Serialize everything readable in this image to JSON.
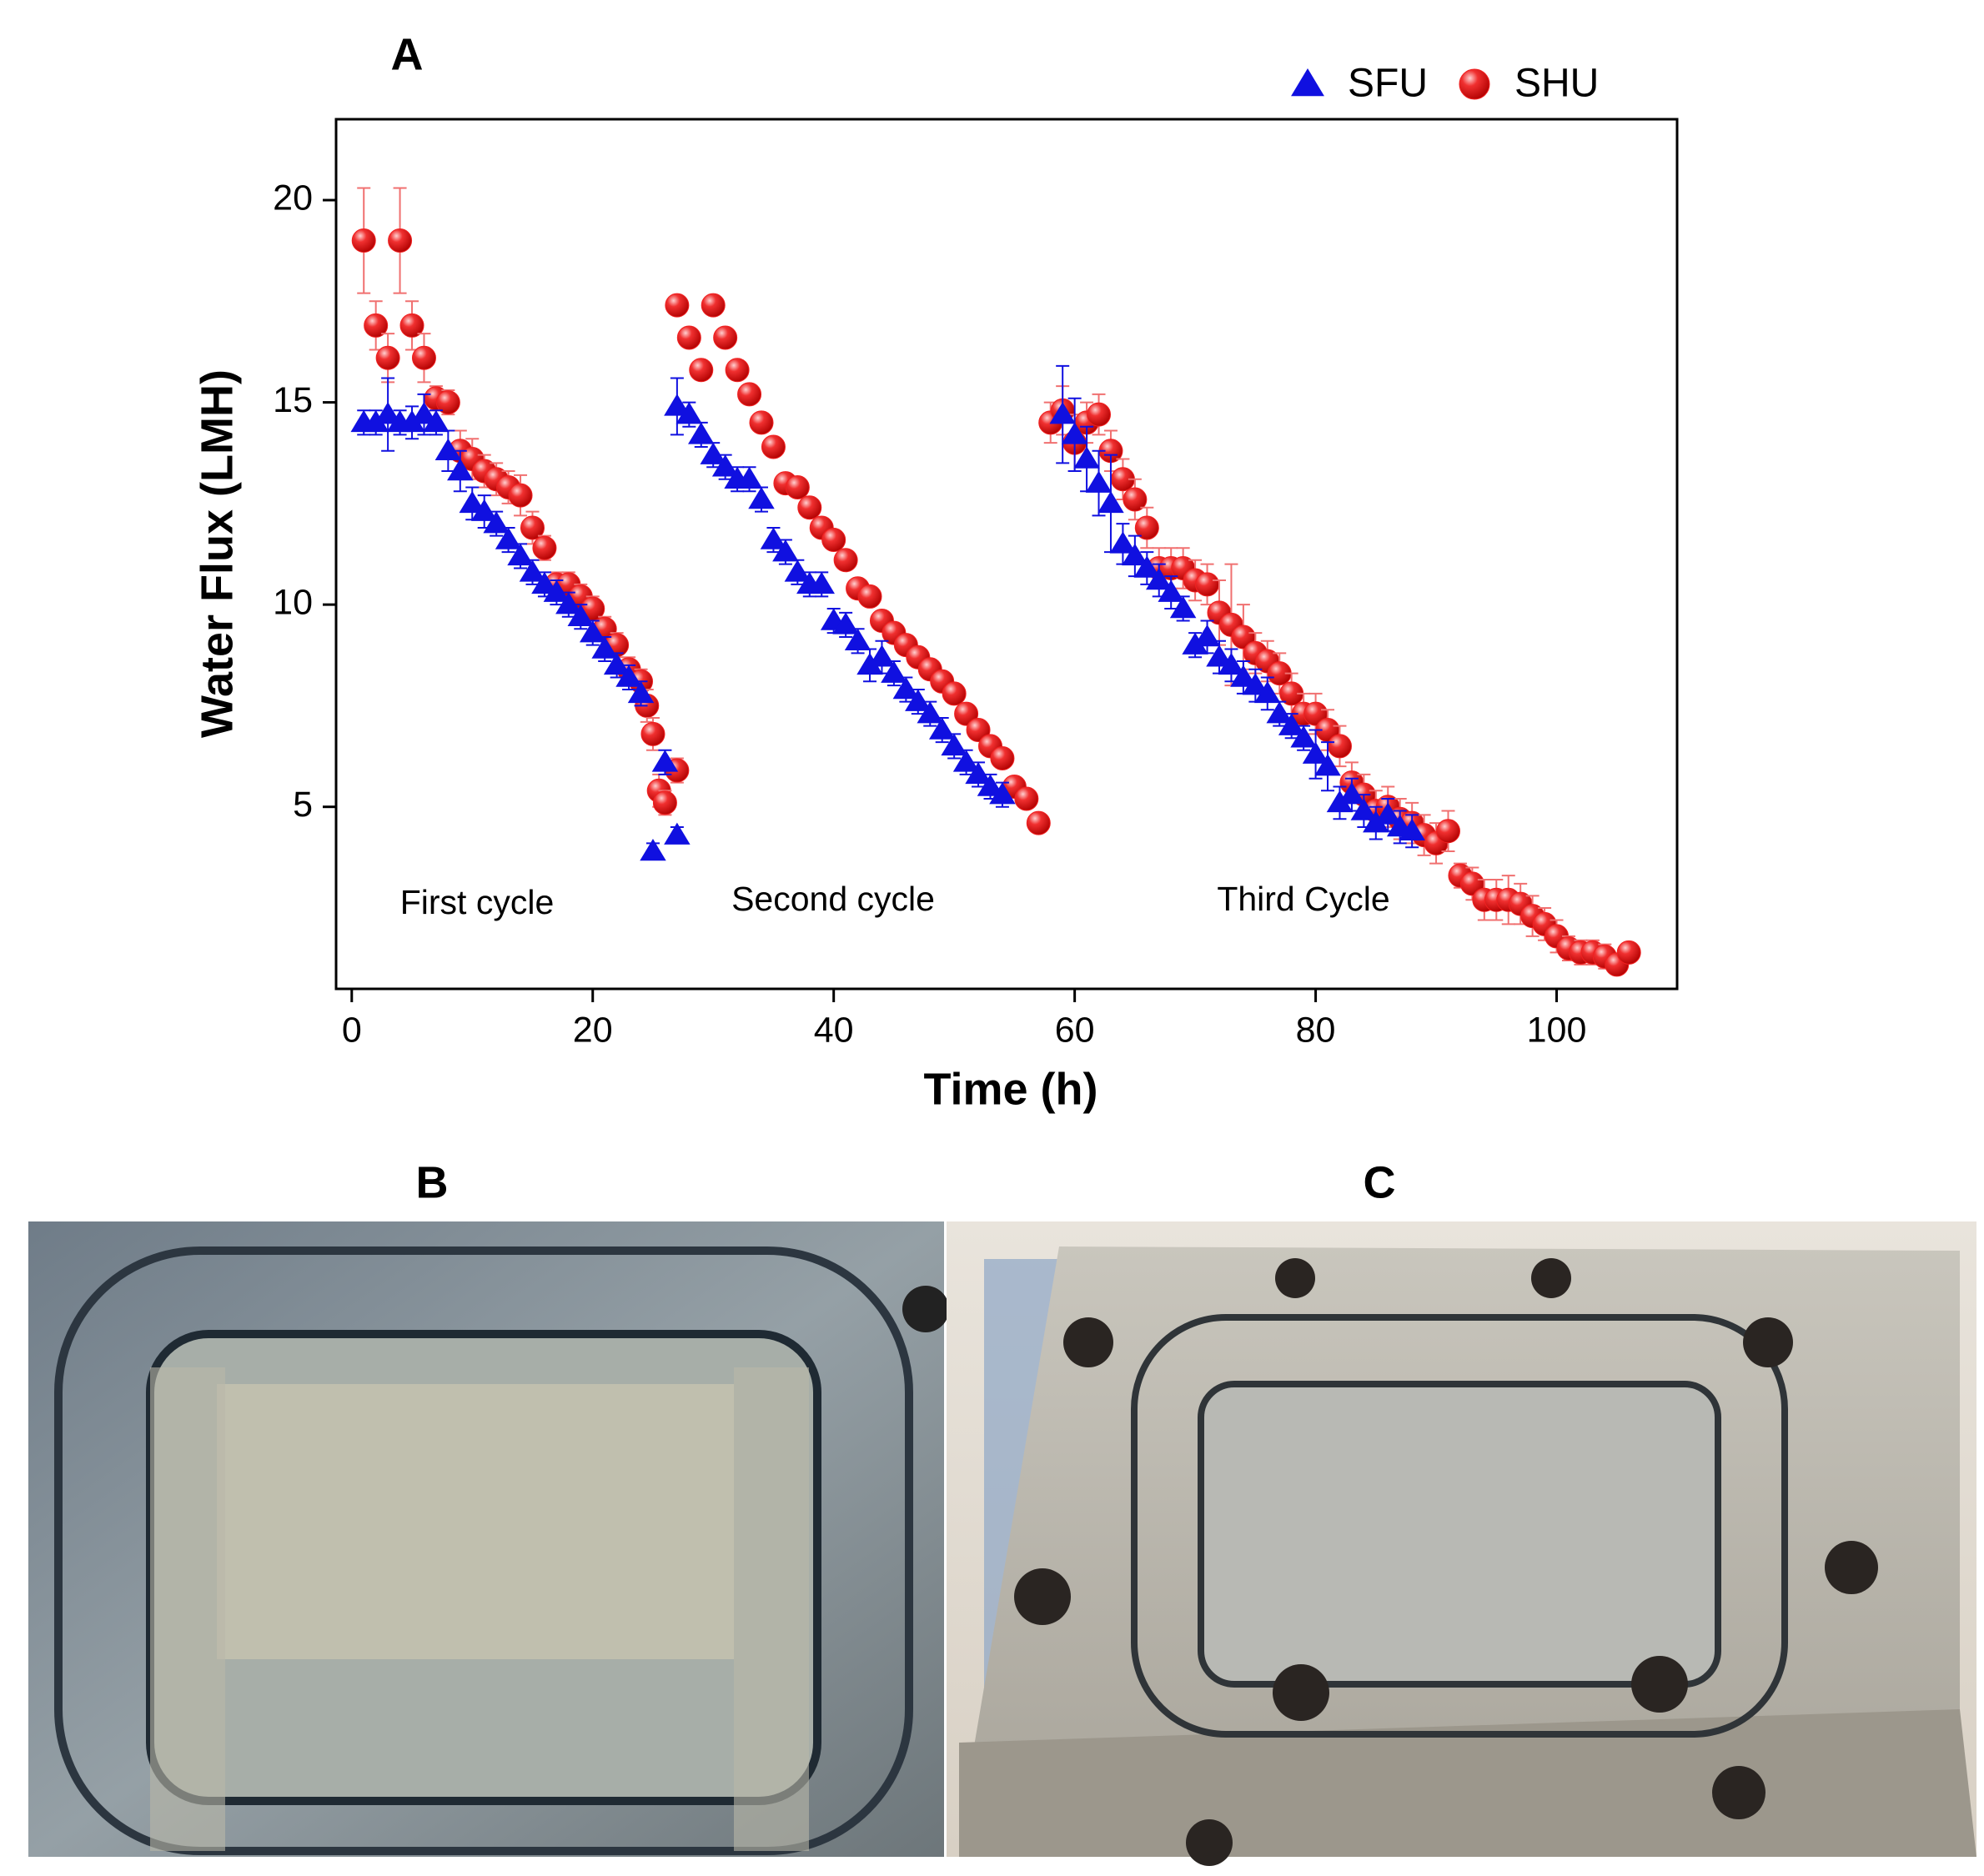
{
  "chart_data": {
    "type": "scatter",
    "panel_label": "A",
    "x_label": "Time (h)",
    "y_label": "Water Flux (LMH)",
    "xlim": [
      -1.3,
      110
    ],
    "ylim": [
      0.5,
      22
    ],
    "xticks": [
      0,
      20,
      40,
      60,
      80,
      100
    ],
    "yticks": [
      5,
      10,
      15,
      20
    ],
    "grid": false,
    "legend": "top-right",
    "annotations": [
      "First cycle",
      "Second cycle",
      "Third Cycle"
    ],
    "series": [
      {
        "name": "SFU",
        "color": "#1010e0",
        "marker": "triangle",
        "x": [
          1,
          2,
          3,
          4,
          5,
          6,
          7,
          8,
          9,
          10,
          11,
          12,
          13,
          14,
          15,
          16,
          17,
          18,
          19,
          20,
          21,
          22,
          23,
          24,
          25,
          26,
          27,
          27,
          28,
          29,
          30,
          31,
          32,
          33,
          34,
          35,
          36,
          37,
          38,
          39,
          40,
          41,
          42,
          43,
          44,
          45,
          46,
          47,
          48,
          49,
          50,
          51,
          52,
          53,
          54,
          59,
          60,
          61,
          62,
          63,
          64,
          65,
          66,
          67,
          68,
          69,
          70,
          71,
          72,
          73,
          74,
          75,
          76,
          77,
          78,
          79,
          80,
          81,
          82,
          83,
          84,
          85,
          86,
          87,
          88
        ],
        "values": [
          14.5,
          14.5,
          14.7,
          14.5,
          14.5,
          14.7,
          14.5,
          13.8,
          13.3,
          12.5,
          12.3,
          12,
          11.6,
          11.2,
          10.8,
          10.5,
          10.3,
          10,
          9.7,
          9.3,
          8.9,
          8.5,
          8.2,
          7.8,
          3.9,
          6.1,
          4.3,
          14.9,
          14.7,
          14.2,
          13.7,
          13.4,
          13.1,
          13.1,
          12.6,
          11.6,
          11.3,
          10.8,
          10.5,
          10.5,
          9.6,
          9.5,
          9.1,
          8.5,
          8.7,
          8.3,
          7.9,
          7.6,
          7.3,
          6.9,
          6.5,
          6.1,
          5.8,
          5.5,
          5.3,
          14.7,
          14.2,
          13.6,
          13,
          12.5,
          11.5,
          11.2,
          10.9,
          10.6,
          10.3,
          9.9,
          9,
          9.2,
          8.7,
          8.5,
          8.2,
          8,
          7.8,
          7.3,
          7,
          6.7,
          6.3,
          6,
          5.1,
          5.3,
          4.9,
          4.6,
          4.8,
          4.5,
          4.4
        ],
        "errors": [
          0.3,
          0.3,
          0.9,
          0.3,
          0.4,
          0.5,
          0.3,
          0.5,
          0.5,
          0.4,
          0.4,
          0.3,
          0.3,
          0.3,
          0.3,
          0.3,
          0.3,
          0.3,
          0.3,
          0.3,
          0.3,
          0.3,
          0.3,
          0.3,
          0.2,
          0.3,
          0.2,
          0.7,
          0.3,
          0.3,
          0.3,
          0.3,
          0.3,
          0.3,
          0.3,
          0.3,
          0.3,
          0.3,
          0.3,
          0.3,
          0.3,
          0.3,
          0.3,
          0.4,
          0.4,
          0.3,
          0.3,
          0.3,
          0.3,
          0.3,
          0.3,
          0.3,
          0.3,
          0.3,
          0.3,
          1.2,
          0.9,
          0.8,
          0.8,
          1.2,
          0.5,
          0.5,
          0.4,
          0.4,
          0.4,
          0.3,
          0.3,
          0.4,
          0.4,
          0.4,
          0.4,
          0.4,
          0.4,
          0.3,
          0.3,
          0.3,
          0.6,
          0.6,
          0.4,
          0.4,
          0.4,
          0.4,
          0.4,
          0.4,
          0.4
        ]
      },
      {
        "name": "SHU",
        "color": "#f02020",
        "marker": "circle",
        "x": [
          1,
          2,
          3,
          4,
          5,
          6,
          7,
          8,
          9,
          10,
          11,
          12,
          13,
          14,
          15,
          16,
          17,
          18,
          19,
          20,
          21,
          22,
          23,
          24,
          24.5,
          25,
          25.5,
          26,
          27,
          27,
          28,
          29,
          30,
          31,
          32,
          33,
          34,
          35,
          36,
          37,
          38,
          39,
          40,
          41,
          42,
          43,
          44,
          45,
          46,
          47,
          48,
          49,
          50,
          51,
          52,
          53,
          54,
          55,
          56,
          57,
          58,
          59,
          60,
          61,
          62,
          63,
          64,
          65,
          66,
          67,
          68,
          69,
          70,
          71,
          72,
          73,
          74,
          75,
          76,
          77,
          78,
          79,
          80,
          81,
          82,
          83,
          84,
          85,
          86,
          87,
          88,
          89,
          90,
          91,
          92,
          93,
          94,
          95,
          96,
          97,
          98,
          99,
          100,
          101,
          102,
          103,
          104,
          105,
          106
        ],
        "values": [
          19,
          16.9,
          16.1,
          19,
          16.9,
          16.1,
          15.1,
          15,
          13.8,
          13.6,
          13.3,
          13.1,
          12.9,
          12.7,
          11.9,
          11.4,
          10.5,
          10.5,
          10.2,
          9.9,
          9.4,
          9,
          8.4,
          8.1,
          7.5,
          6.8,
          5.4,
          5.1,
          5.9,
          17.4,
          16.6,
          15.8,
          17.4,
          16.6,
          15.8,
          15.2,
          14.5,
          13.9,
          13,
          12.9,
          12.4,
          11.9,
          11.6,
          11.1,
          10.4,
          10.2,
          9.6,
          9.3,
          9,
          8.7,
          8.4,
          8.1,
          7.8,
          7.3,
          6.9,
          6.5,
          6.2,
          5.5,
          5.2,
          4.6,
          14.5,
          14.8,
          14,
          14.5,
          14.7,
          13.8,
          13.1,
          12.6,
          11.9,
          10.9,
          10.9,
          10.9,
          10.6,
          10.5,
          9.8,
          9.5,
          9.2,
          8.8,
          8.6,
          8.3,
          7.8,
          7.3,
          7.3,
          6.9,
          6.5,
          5.6,
          5.3,
          4.9,
          5,
          4.7,
          4.6,
          4.3,
          4.1,
          4.4,
          3.3,
          3.1,
          2.7,
          2.7,
          2.7,
          2.6,
          2.3,
          2.1,
          1.8,
          1.5,
          1.4,
          1.4,
          1.3,
          1.1,
          1.4
        ],
        "errors": [
          1.3,
          0.6,
          0.6,
          1.3,
          0.6,
          0.6,
          0.3,
          0.3,
          0.5,
          0.5,
          0.4,
          0.4,
          0.4,
          0.5,
          0.4,
          0.3,
          0.3,
          0.3,
          0.3,
          0.3,
          0.3,
          0.3,
          0.3,
          0.3,
          0.4,
          0.4,
          0.4,
          0.3,
          0.3,
          0.1,
          0.1,
          0.1,
          0.1,
          0.1,
          0.1,
          0.1,
          0.1,
          0.1,
          0.1,
          0.1,
          0.1,
          0.1,
          0.1,
          0.1,
          0.1,
          0.1,
          0.1,
          0.1,
          0.1,
          0.1,
          0.1,
          0.1,
          0.1,
          0.1,
          0.1,
          0.1,
          0.1,
          0.1,
          0.1,
          0.1,
          0.5,
          0.6,
          0.7,
          0.5,
          0.5,
          0.5,
          0.5,
          0.5,
          0.5,
          0.5,
          0.5,
          0.5,
          0.5,
          0.5,
          0.8,
          1.5,
          0.8,
          0.5,
          0.5,
          0.5,
          0.5,
          0.5,
          0.5,
          0.5,
          0.5,
          0.5,
          0.5,
          0.5,
          0.5,
          0.5,
          0.5,
          0.5,
          0.5,
          0.5,
          0.3,
          0.4,
          0.5,
          0.5,
          0.6,
          0.5,
          0.5,
          0.4,
          0.4,
          0.3,
          0.3,
          0.3,
          0.3,
          0.2,
          0.2
        ]
      }
    ]
  },
  "panels": [
    {
      "label": "B"
    },
    {
      "label": "C"
    }
  ]
}
